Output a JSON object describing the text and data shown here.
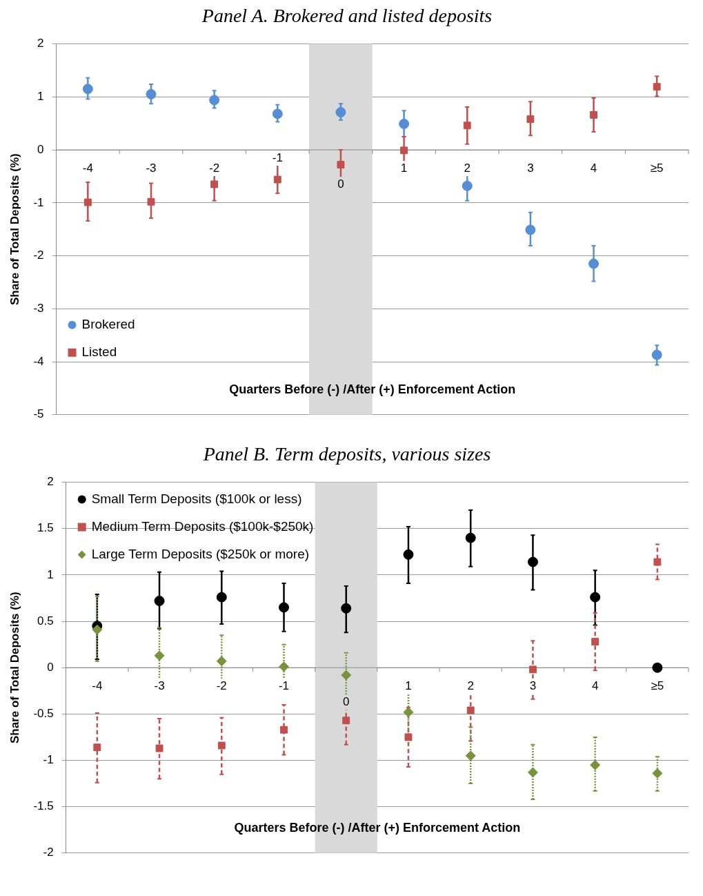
{
  "chart_data": [
    {
      "type": "scatter",
      "title": "Panel A. Brokered and listed deposits",
      "xlabel": "Quarters Before (-) /After (+) Enforcement Action",
      "ylabel": "Share of Total Deposits (%)",
      "categories": [
        "-4",
        "-3",
        "-2",
        "-1",
        "0",
        "1",
        "2",
        "3",
        "4",
        "≥5"
      ],
      "series": [
        {
          "name": "Brokered",
          "color": "#558ed5",
          "marker": "circle",
          "values": [
            1.15,
            1.05,
            0.94,
            0.68,
            0.71,
            0.49,
            -0.68,
            -1.51,
            -2.15,
            -3.87
          ],
          "errors": [
            [
              0.96,
              1.36
            ],
            [
              0.87,
              1.24
            ],
            [
              0.79,
              1.12
            ],
            [
              0.53,
              0.85
            ],
            [
              0.56,
              0.87
            ],
            [
              0.25,
              0.74
            ],
            [
              -0.96,
              -0.43
            ],
            [
              -1.81,
              -1.18
            ],
            [
              -2.48,
              -1.81
            ],
            [
              -4.06,
              -3.69
            ]
          ]
        },
        {
          "name": "Listed",
          "color": "#c0504d",
          "marker": "square",
          "values": [
            -0.99,
            -0.98,
            -0.65,
            -0.56,
            -0.28,
            -0.01,
            0.46,
            0.58,
            0.66,
            1.19
          ],
          "errors": [
            [
              -1.34,
              -0.61
            ],
            [
              -1.29,
              -0.63
            ],
            [
              -0.96,
              -0.33
            ],
            [
              -0.82,
              -0.28
            ],
            [
              -0.53,
              0
            ],
            [
              -0.28,
              0.25
            ],
            [
              0.11,
              0.81
            ],
            [
              0.27,
              0.91
            ],
            [
              0.34,
              0.98
            ],
            [
              1.01,
              1.39
            ]
          ]
        }
      ],
      "ylim": [
        -5,
        2
      ],
      "yticks": [
        -5,
        -4,
        -3,
        -2,
        -1,
        0,
        1,
        2
      ],
      "grid": "y",
      "legend": "bottom left",
      "bands": [
        {
          "axis": "x",
          "from": "0",
          "to": "0",
          "color": "#d9d9d9"
        }
      ]
    },
    {
      "type": "scatter",
      "title": "Panel B. Term deposits, various sizes",
      "xlabel": "Quarters Before (-) /After (+) Enforcement Action",
      "ylabel": "Share of Total Deposits (%)",
      "categories": [
        "-4",
        "-3",
        "-2",
        "-1",
        "0",
        "1",
        "2",
        "3",
        "4",
        "≥5"
      ],
      "series": [
        {
          "name": "Small Term Deposits ($100k or less)",
          "color": "#000000",
          "marker": "circle",
          "line_style": "solid",
          "values": [
            0.45,
            0.72,
            0.76,
            0.65,
            0.64,
            1.22,
            1.4,
            1.14,
            0.76,
            0
          ],
          "errors": [
            [
              0.09,
              0.79
            ],
            [
              0.42,
              1.03
            ],
            [
              0.47,
              1.04
            ],
            [
              0.39,
              0.91
            ],
            [
              0.38,
              0.88
            ],
            [
              0.91,
              1.52
            ],
            [
              1.09,
              1.7
            ],
            [
              0.84,
              1.43
            ],
            [
              0.46,
              1.05
            ],
            null
          ]
        },
        {
          "name": "Medium Term Deposits ($100k-$250k)",
          "color": "#c0504d",
          "marker": "square",
          "line_style": "dashed",
          "values": [
            -0.86,
            -0.87,
            -0.84,
            -0.67,
            -0.57,
            -0.75,
            -0.46,
            -0.02,
            0.28,
            1.14
          ],
          "errors": [
            [
              -1.24,
              -0.49
            ],
            [
              -1.2,
              -0.55
            ],
            [
              -1.15,
              -0.54
            ],
            [
              -0.94,
              -0.4
            ],
            [
              -0.83,
              -0.3
            ],
            [
              -1.07,
              -0.43
            ],
            [
              -0.79,
              -0.14
            ],
            [
              -0.34,
              0.29
            ],
            [
              -0.03,
              0.59
            ],
            [
              0.95,
              1.33
            ]
          ]
        },
        {
          "name": "Large Term Deposits ($250k or more)",
          "color": "#77933c",
          "marker": "diamond",
          "line_style": "dotted",
          "values": [
            0.41,
            0.13,
            0.07,
            0.01,
            -0.08,
            -0.48,
            -0.95,
            -1.13,
            -1.05,
            -1.14
          ],
          "errors": [
            [
              0.07,
              0.77
            ],
            [
              -0.17,
              0.43
            ],
            [
              -0.21,
              0.35
            ],
            [
              -0.23,
              0.25
            ],
            [
              -0.32,
              0.16
            ],
            [
              -0.78,
              -0.18
            ],
            [
              -1.25,
              -0.64
            ],
            [
              -1.42,
              -0.83
            ],
            [
              -1.33,
              -0.75
            ],
            [
              -1.33,
              -0.96
            ]
          ]
        }
      ],
      "ylim": [
        -2,
        2
      ],
      "yticks": [
        -2,
        -1.5,
        -1,
        -0.5,
        0,
        0.5,
        1,
        1.5,
        2
      ],
      "grid": "y",
      "legend": "top left",
      "bands": [
        {
          "axis": "x",
          "from": "0",
          "to": "0",
          "color": "#d9d9d9"
        }
      ]
    }
  ]
}
